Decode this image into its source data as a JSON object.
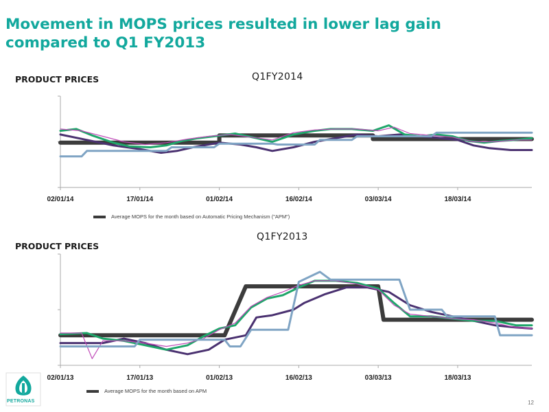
{
  "title": "Movement in MOPS prices resulted in lower lag gain compared to Q1 FY2013",
  "sections": [
    {
      "label": "PRODUCT PRICES",
      "heading": "Q1FY2014",
      "legend": "Average MOPS for the month based on Automatic Pricing Mechanism (\"APM\")"
    },
    {
      "label": "PRODUCT PRICES",
      "heading": "Q1FY2013",
      "legend": "Average MOPS for the month based on APM"
    }
  ],
  "logo_text": "PETRONAS",
  "page_number": "12",
  "colors": {
    "title": "#12a89d",
    "series": [
      "#3c3c3c",
      "#4a3170",
      "#1fa66a",
      "#c04bb8",
      "#7fa4c4"
    ]
  },
  "chart_data": [
    {
      "type": "line",
      "title": "Q1FY2014",
      "ylabel": "PRODUCT PRICES",
      "xlim": [
        0,
        89
      ],
      "ylim": [
        0,
        100
      ],
      "y_ticks": [
        0,
        50,
        100
      ],
      "x_ticks": [
        {
          "x": 0,
          "label": "02/01/14"
        },
        {
          "x": 15,
          "label": "17/01/14"
        },
        {
          "x": 30,
          "label": "01/02/14"
        },
        {
          "x": 45,
          "label": "16/02/14"
        },
        {
          "x": 60,
          "label": "03/03/14"
        },
        {
          "x": 75,
          "label": "18/03/14"
        }
      ],
      "legend": [
        "Average MOPS for the month based on Automatic Pricing Mechanism (\"APM\")"
      ],
      "series": [
        {
          "role": "apm",
          "points": [
            [
              0,
              49
            ],
            [
              30,
              49
            ],
            [
              30,
              57
            ],
            [
              59,
              57
            ],
            [
              59,
              53
            ],
            [
              89,
              53
            ]
          ]
        },
        {
          "role": "dark",
          "points": [
            [
              0,
              58
            ],
            [
              5,
              52
            ],
            [
              10,
              46
            ],
            [
              15,
              42
            ],
            [
              19,
              38
            ],
            [
              22,
              40
            ],
            [
              25,
              44
            ],
            [
              30,
              49
            ],
            [
              34,
              47
            ],
            [
              37,
              44
            ],
            [
              40,
              40
            ],
            [
              44,
              44
            ],
            [
              48,
              50
            ],
            [
              52,
              54
            ],
            [
              56,
              58
            ],
            [
              60,
              56
            ],
            [
              64,
              58
            ],
            [
              68,
              56
            ],
            [
              72,
              54
            ],
            [
              75,
              52
            ],
            [
              78,
              46
            ],
            [
              81,
              43
            ],
            [
              85,
              41
            ],
            [
              89,
              41
            ]
          ]
        },
        {
          "role": "green",
          "points": [
            [
              0,
              62
            ],
            [
              3,
              64
            ],
            [
              6,
              57
            ],
            [
              10,
              49
            ],
            [
              13,
              45
            ],
            [
              17,
              44
            ],
            [
              20,
              46
            ],
            [
              23,
              51
            ],
            [
              26,
              54
            ],
            [
              29,
              56
            ],
            [
              33,
              59
            ],
            [
              37,
              54
            ],
            [
              40,
              50
            ],
            [
              44,
              58
            ],
            [
              48,
              62
            ],
            [
              51,
              64
            ],
            [
              55,
              64
            ],
            [
              59,
              62
            ],
            [
              62,
              68
            ],
            [
              65,
              58
            ],
            [
              68,
              56
            ],
            [
              71,
              58
            ],
            [
              74,
              56
            ],
            [
              77,
              51
            ],
            [
              80,
              49
            ],
            [
              83,
              51
            ],
            [
              86,
              52
            ],
            [
              89,
              54
            ]
          ]
        },
        {
          "role": "magenta",
          "points": [
            [
              0,
              64
            ],
            [
              4,
              62
            ],
            [
              8,
              56
            ],
            [
              12,
              50
            ],
            [
              16,
              47
            ],
            [
              20,
              49
            ],
            [
              24,
              53
            ],
            [
              28,
              56
            ],
            [
              32,
              58
            ],
            [
              36,
              55
            ],
            [
              40,
              52
            ],
            [
              44,
              60
            ],
            [
              48,
              63
            ],
            [
              52,
              64
            ],
            [
              56,
              64
            ],
            [
              60,
              62
            ],
            [
              63,
              66
            ],
            [
              66,
              59
            ],
            [
              70,
              57
            ],
            [
              74,
              55
            ],
            [
              78,
              50
            ],
            [
              82,
              50
            ],
            [
              86,
              52
            ],
            [
              89,
              52
            ]
          ]
        },
        {
          "role": "lightblue",
          "points": [
            [
              0,
              34
            ],
            [
              4,
              34
            ],
            [
              5,
              40
            ],
            [
              20,
              40
            ],
            [
              21,
              44
            ],
            [
              29,
              44
            ],
            [
              30,
              48
            ],
            [
              40,
              48
            ],
            [
              41,
              47
            ],
            [
              48,
              47
            ],
            [
              49,
              52
            ],
            [
              55,
              52
            ],
            [
              56,
              56
            ],
            [
              70,
              56
            ],
            [
              71,
              60
            ],
            [
              89,
              60
            ]
          ]
        }
      ]
    },
    {
      "type": "line",
      "title": "Q1FY2013",
      "ylabel": "PRODUCT PRICES",
      "xlim": [
        0,
        89
      ],
      "ylim": [
        0,
        100
      ],
      "y_ticks": [
        0,
        50,
        100
      ],
      "x_ticks": [
        {
          "x": 0,
          "label": "02/01/13"
        },
        {
          "x": 15,
          "label": "17/01/13"
        },
        {
          "x": 30,
          "label": "01/02/13"
        },
        {
          "x": 45,
          "label": "16/02/13"
        },
        {
          "x": 60,
          "label": "03/03/13"
        },
        {
          "x": 75,
          "label": "18/03/13"
        }
      ],
      "legend": [
        "Average MOPS for the month based on APM"
      ],
      "series": [
        {
          "role": "apm",
          "points": [
            [
              0,
              27
            ],
            [
              31,
              27
            ],
            [
              35,
              71
            ],
            [
              60,
              71
            ],
            [
              61,
              41
            ],
            [
              89,
              41
            ]
          ]
        },
        {
          "role": "dark",
          "points": [
            [
              0,
              20
            ],
            [
              8,
              20
            ],
            [
              12,
              24
            ],
            [
              16,
              20
            ],
            [
              20,
              14
            ],
            [
              24,
              10
            ],
            [
              28,
              14
            ],
            [
              31,
              23
            ],
            [
              35,
              27
            ],
            [
              37,
              43
            ],
            [
              40,
              45
            ],
            [
              44,
              50
            ],
            [
              46,
              56
            ],
            [
              50,
              64
            ],
            [
              54,
              70
            ],
            [
              58,
              70
            ],
            [
              62,
              66
            ],
            [
              66,
              54
            ],
            [
              70,
              48
            ],
            [
              74,
              44
            ],
            [
              78,
              40
            ],
            [
              82,
              36
            ],
            [
              86,
              34
            ],
            [
              89,
              33
            ]
          ]
        },
        {
          "role": "green",
          "points": [
            [
              0,
              28
            ],
            [
              5,
              29
            ],
            [
              8,
              24
            ],
            [
              12,
              22
            ],
            [
              16,
              18
            ],
            [
              20,
              14
            ],
            [
              24,
              18
            ],
            [
              27,
              26
            ],
            [
              30,
              33
            ],
            [
              33,
              36
            ],
            [
              36,
              52
            ],
            [
              39,
              60
            ],
            [
              42,
              63
            ],
            [
              45,
              70
            ],
            [
              48,
              76
            ],
            [
              52,
              76
            ],
            [
              56,
              74
            ],
            [
              60,
              69
            ],
            [
              63,
              56
            ],
            [
              66,
              44
            ],
            [
              70,
              44
            ],
            [
              74,
              42
            ],
            [
              78,
              40
            ],
            [
              82,
              40
            ],
            [
              86,
              36
            ],
            [
              89,
              36
            ]
          ]
        },
        {
          "role": "magenta",
          "points": [
            [
              0,
              29
            ],
            [
              4,
              29
            ],
            [
              6,
              6
            ],
            [
              8,
              22
            ],
            [
              12,
              22
            ],
            [
              16,
              20
            ],
            [
              20,
              17
            ],
            [
              24,
              20
            ],
            [
              27,
              24
            ],
            [
              30,
              32
            ],
            [
              33,
              38
            ],
            [
              36,
              53
            ],
            [
              39,
              61
            ],
            [
              42,
              66
            ],
            [
              45,
              72
            ],
            [
              48,
              76
            ],
            [
              52,
              76
            ],
            [
              56,
              73
            ],
            [
              60,
              68
            ],
            [
              63,
              54
            ],
            [
              66,
              46
            ],
            [
              70,
              44
            ],
            [
              74,
              42
            ],
            [
              78,
              41
            ],
            [
              82,
              38
            ],
            [
              86,
              34
            ],
            [
              89,
              33
            ]
          ]
        },
        {
          "role": "lightblue",
          "points": [
            [
              0,
              17
            ],
            [
              14,
              17
            ],
            [
              15,
              23
            ],
            [
              31,
              23
            ],
            [
              32,
              17
            ],
            [
              34,
              17
            ],
            [
              36,
              32
            ],
            [
              43,
              32
            ],
            [
              45,
              75
            ],
            [
              49,
              84
            ],
            [
              51,
              77
            ],
            [
              57,
              77
            ],
            [
              64,
              77
            ],
            [
              66,
              50
            ],
            [
              72,
              50
            ],
            [
              73,
              44
            ],
            [
              82,
              44
            ],
            [
              83,
              27
            ],
            [
              89,
              27
            ]
          ]
        }
      ]
    }
  ]
}
